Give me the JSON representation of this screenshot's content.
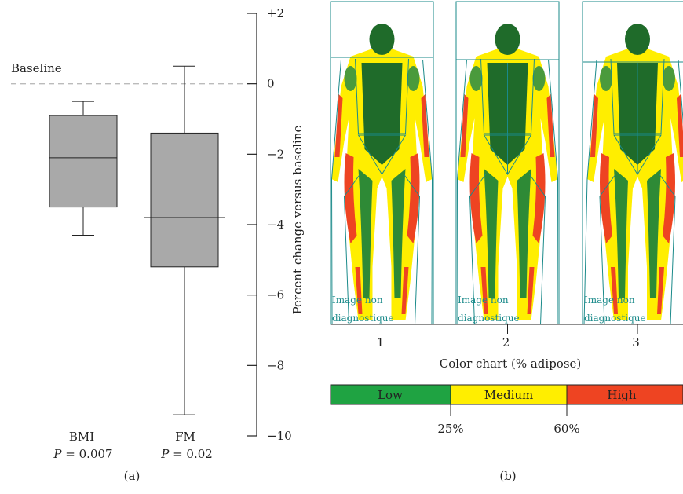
{
  "chart_data": [
    {
      "type": "box",
      "panel_label": "(a)",
      "categories": [
        "BMI",
        "FM"
      ],
      "boxes": [
        {
          "name": "BMI",
          "min": -4.3,
          "q1": -3.5,
          "median": -2.1,
          "q3": -0.9,
          "max": -0.5,
          "p_label": "P",
          "p_value": "= 0.007"
        },
        {
          "name": "FM",
          "min": -9.4,
          "q1": -5.2,
          "median": -3.8,
          "q3": -1.4,
          "max": 0.5,
          "p_label": "P",
          "p_value": "= 0.02"
        }
      ],
      "ylabel": "Percent change versus baseline",
      "ylim": [
        -10,
        2
      ],
      "yticks": [
        2,
        0,
        -2,
        -4,
        -6,
        -8,
        -10
      ],
      "ytick_labels": [
        "+2",
        "0",
        "−2",
        "−4",
        "−6",
        "−8",
        "−10"
      ],
      "baseline_value": 0,
      "baseline_label": "Baseline",
      "box_color": "#a9a9a9"
    }
  ],
  "panel_b": {
    "panel_label": "(b)",
    "images": [
      {
        "number": "1",
        "watermark_line1": "Image non",
        "watermark_line2": "diagnostique"
      },
      {
        "number": "2",
        "watermark_line1": "Image non",
        "watermark_line2": "diagnostique"
      },
      {
        "number": "3",
        "watermark_line1": "Image non",
        "watermark_line2": "diagnostique"
      }
    ],
    "color_chart_title": "Color chart (% adipose)",
    "legend": [
      {
        "label": "Low",
        "color": "#1fa342"
      },
      {
        "label": "Medium",
        "color": "#ffee00"
      },
      {
        "label": "High",
        "color": "#ee4422"
      }
    ],
    "thresholds": [
      "25%",
      "60%"
    ]
  }
}
